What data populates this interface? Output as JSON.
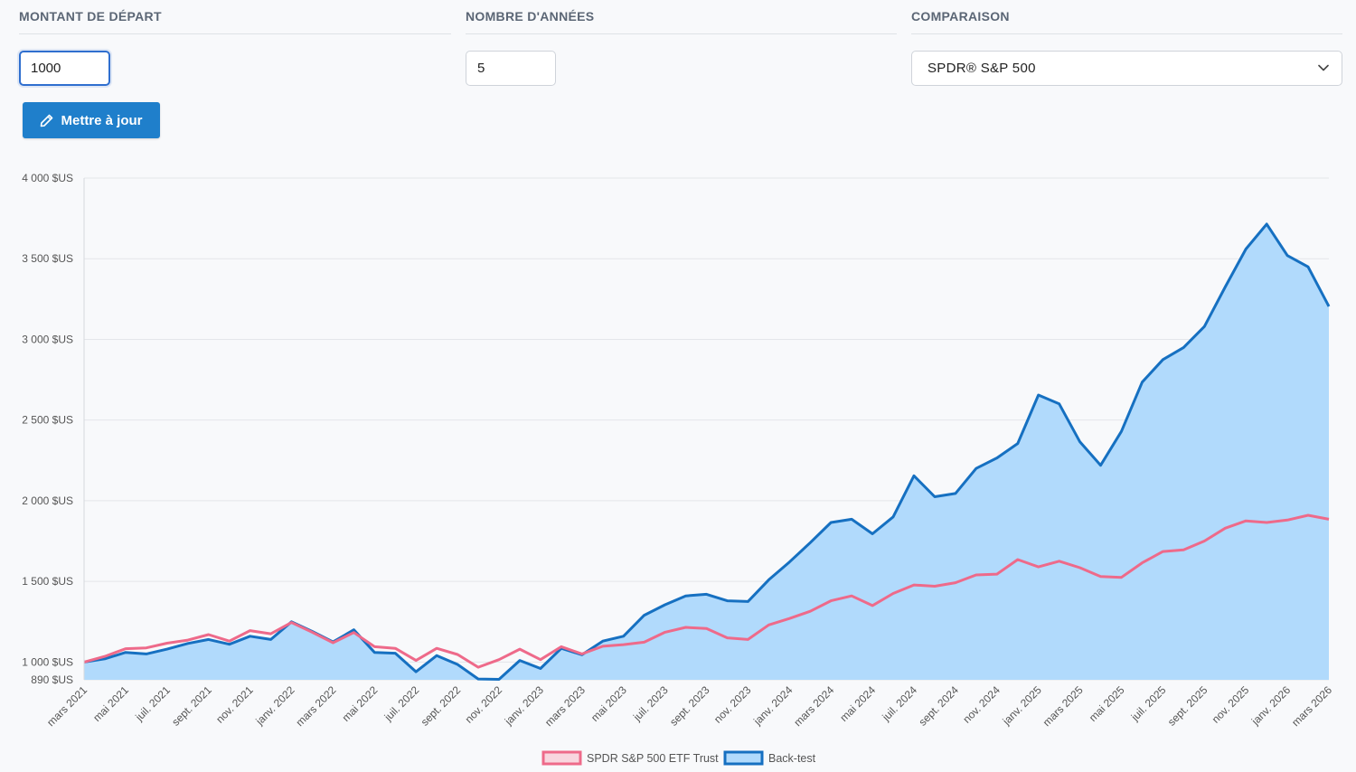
{
  "form": {
    "amount": {
      "label": "MONTANT DE DÉPART",
      "value": "1000"
    },
    "years": {
      "label": "NOMBRE D'ANNÉES",
      "value": "5"
    },
    "compare": {
      "label": "COMPARAISON",
      "selected": "SPDR® S&P 500"
    },
    "update_label": "Mettre à jour"
  },
  "icons": {
    "update": "pencil-icon",
    "select": "chevron-down-icon"
  },
  "colors": {
    "button": "#1f7fcb",
    "backtest_line": "#1670c1",
    "backtest_fill": "#b1dafc",
    "spdr_line": "#ee6a8a",
    "spdr_fill": "#f8d6df",
    "grid": "#e4e6ea"
  },
  "chart_data": {
    "type": "area",
    "ylim": [
      890,
      4000
    ],
    "yticks": [
      "4 000 $US",
      "3 500 $US",
      "3 000 $US",
      "2 500 $US",
      "2 000 $US",
      "1 500 $US",
      "1 000 $US",
      "890 $US"
    ],
    "ytick_values": [
      4000,
      3500,
      3000,
      2500,
      2000,
      1500,
      1000,
      890
    ],
    "x": [
      "mars 2021",
      "avr. 2021",
      "mai 2021",
      "juin 2021",
      "juil. 2021",
      "août 2021",
      "sept. 2021",
      "oct. 2021",
      "nov. 2021",
      "déc. 2021",
      "janv. 2022",
      "févr. 2022",
      "mars 2022",
      "avr. 2022",
      "mai 2022",
      "juin 2022",
      "juil. 2022",
      "août 2022",
      "sept. 2022",
      "oct. 2022",
      "nov. 2022",
      "déc. 2022",
      "janv. 2023",
      "févr. 2023",
      "mars 2023",
      "avr. 2023",
      "mai 2023",
      "juin 2023",
      "juil. 2023",
      "août 2023",
      "sept. 2023",
      "oct. 2023",
      "nov. 2023",
      "déc. 2023",
      "janv. 2024",
      "févr. 2024",
      "mars 2024",
      "avr. 2024",
      "mai 2024",
      "juin 2024",
      "juil. 2024",
      "août 2024",
      "sept. 2024",
      "oct. 2024",
      "nov. 2024",
      "déc. 2024",
      "janv. 2025",
      "févr. 2025",
      "mars 2025",
      "avr. 2025",
      "mai 2025",
      "juin 2025",
      "juil. 2025",
      "août 2025",
      "sept. 2025",
      "oct. 2025",
      "nov. 2025",
      "déc. 2025",
      "janv. 2026",
      "févr. 2026",
      "mars 2026"
    ],
    "xtick_labels": [
      "mars 2021",
      "mai 2021",
      "juil. 2021",
      "sept. 2021",
      "nov. 2021",
      "janv. 2022",
      "mars 2022",
      "mai 2022",
      "juil. 2022",
      "sept. 2022",
      "nov. 2022",
      "janv. 2023",
      "mars 2023",
      "mai 2023",
      "juil. 2023",
      "sept. 2023",
      "nov. 2023",
      "janv. 2024",
      "mars 2024",
      "mai 2024",
      "juil. 2024",
      "sept. 2024",
      "nov. 2024",
      "janv. 2025",
      "mars 2025",
      "mai 2025",
      "juil. 2025",
      "sept. 2025",
      "nov. 2025",
      "janv. 2026",
      "mars 2026"
    ],
    "legend_position": "bottom",
    "grid": true,
    "series": [
      {
        "name": "SPDR S&P 500 ETF Trust",
        "values": [
          1000,
          1035,
          1083,
          1088,
          1117,
          1136,
          1170,
          1130,
          1195,
          1175,
          1245,
          1185,
          1120,
          1183,
          1095,
          1085,
          1010,
          1085,
          1047,
          968,
          1015,
          1080,
          1015,
          1095,
          1050,
          1098,
          1108,
          1123,
          1185,
          1215,
          1208,
          1150,
          1140,
          1230,
          1270,
          1315,
          1380,
          1410,
          1350,
          1425,
          1478,
          1470,
          1492,
          1540,
          1545,
          1635,
          1590,
          1625,
          1585,
          1530,
          1525,
          1615,
          1685,
          1695,
          1750,
          1830,
          1875,
          1865,
          1880,
          1910,
          1885
        ]
      },
      {
        "name": "Back-test",
        "values": [
          1000,
          1020,
          1060,
          1050,
          1080,
          1115,
          1140,
          1110,
          1160,
          1140,
          1250,
          1190,
          1125,
          1200,
          1060,
          1055,
          940,
          1040,
          985,
          895,
          893,
          1010,
          960,
          1085,
          1045,
          1130,
          1160,
          1290,
          1355,
          1410,
          1420,
          1380,
          1375,
          1510,
          1620,
          1740,
          1865,
          1885,
          1795,
          1900,
          2155,
          2025,
          2045,
          2200,
          2265,
          2355,
          2655,
          2600,
          2365,
          2220,
          2430,
          2735,
          2875,
          2950,
          3080,
          3325,
          3560,
          3715,
          3520,
          3450,
          3205
        ]
      }
    ]
  }
}
